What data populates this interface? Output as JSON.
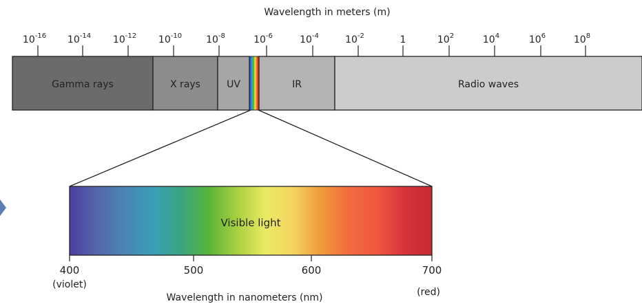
{
  "top_axis": {
    "title": "Wavelength in meters (m)",
    "ticks": [
      {
        "base": "10",
        "exp": "-16"
      },
      {
        "base": "10",
        "exp": "-14"
      },
      {
        "base": "10",
        "exp": "-12"
      },
      {
        "base": "10",
        "exp": "-10"
      },
      {
        "base": "10",
        "exp": "-8"
      },
      {
        "base": "10",
        "exp": "-6"
      },
      {
        "base": "10",
        "exp": "-4"
      },
      {
        "base": "10",
        "exp": "-2"
      },
      {
        "base": "1",
        "exp": ""
      },
      {
        "base": "10",
        "exp": "2"
      },
      {
        "base": "10",
        "exp": "4"
      },
      {
        "base": "10",
        "exp": "6"
      },
      {
        "base": "10",
        "exp": "8"
      }
    ]
  },
  "bands": [
    {
      "label": "Gamma rays",
      "color": "#6b6b6b"
    },
    {
      "label": "X rays",
      "color": "#8c8c8c"
    },
    {
      "label": "UV",
      "color": "#a6a6a6"
    },
    {
      "label": "IR",
      "color": "#b3b3b3"
    },
    {
      "label": "Radio waves",
      "color": "#cccccc"
    }
  ],
  "visible": {
    "label": "Visible light",
    "axis_title": "Wavelength in nanometers (nm)",
    "ticks": [
      "400",
      "500",
      "600",
      "700"
    ],
    "start_note": "(violet)",
    "end_note": "(red)",
    "gradient": [
      "#4b3f9e",
      "#5566ad",
      "#4a86b4",
      "#3a9fb8",
      "#3aa57f",
      "#57b53a",
      "#a8cf3f",
      "#eaea63",
      "#f4d562",
      "#f09a3d",
      "#f26d3d",
      "#f0583f",
      "#d6333a",
      "#c62b33"
    ]
  },
  "strip_colors": [
    "#2b2a9c",
    "#2f6fd0",
    "#37a9c9",
    "#3fae3a",
    "#e8e83a",
    "#f09a2a",
    "#e23a2a",
    "#b1221f"
  ]
}
